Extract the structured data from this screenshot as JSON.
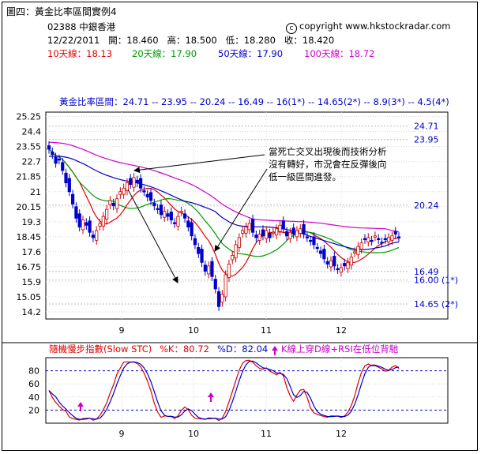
{
  "caption": "圖四：黃金比率區間實例4",
  "copyright": "copyright www.hkstockradar.com",
  "stock": {
    "code": "02388",
    "name": "中銀香港"
  },
  "quote": {
    "date": "12/22/2011",
    "open_label": "開：",
    "open": "18.460",
    "high_label": "高：",
    "high": "18.500",
    "low_label": "低：",
    "low": "18.280",
    "close_label": "收：",
    "close": "18.420"
  },
  "moving_averages": [
    {
      "label": "10天線：",
      "value": "18.13",
      "color": "#e00000"
    },
    {
      "label": "20天線：",
      "value": "17.90",
      "color": "#009900"
    },
    {
      "label": "50天線：",
      "value": "17.90",
      "color": "#0000cc"
    },
    {
      "label": "100天線：",
      "value": "18.72",
      "color": "#cc00cc"
    }
  ],
  "chart_data": [
    {
      "type": "candlestick",
      "title": "黃金比率區間：24.71 -- 23.95 -- 20.24 -- 16.49 -- 16(1*) -- 14.65(2*) -- 8.9(3*) -- 4.5(4*)",
      "ylim": [
        13.8,
        25.5
      ],
      "yticks": [
        "25.25",
        "24.4",
        "23.55",
        "22.7",
        "21.85",
        "21",
        "20.15",
        "19.3",
        "18.45",
        "17.6",
        "16.75",
        "15.9",
        "15.05",
        "14.2"
      ],
      "x_month_labels": [
        "9",
        "10",
        "11",
        "12"
      ],
      "golden_levels": [
        {
          "value": 24.71,
          "label": "24.71"
        },
        {
          "value": 23.95,
          "label": "23.95"
        },
        {
          "value": 20.24,
          "label": "20.24"
        },
        {
          "value": 16.49,
          "label": "16.49"
        },
        {
          "value": 16.0,
          "label": "16.00 (1*)"
        },
        {
          "value": 14.65,
          "label": "14.65 (2*)"
        }
      ],
      "annotation": [
        "當死亡交叉出現後而技術分析",
        "沒有轉好，市況會在反彈後向",
        "低一級區間進發。"
      ],
      "closes": [
        23.4,
        23.1,
        22.6,
        22.8,
        22.2,
        21.5,
        21.0,
        20.3,
        19.5,
        19.0,
        19.4,
        19.1,
        18.7,
        18.4,
        18.8,
        19.2,
        19.6,
        20.0,
        20.5,
        20.2,
        20.6,
        21.0,
        21.2,
        21.5,
        21.4,
        21.8,
        21.5,
        21.2,
        21.0,
        20.7,
        20.5,
        20.2,
        20.0,
        19.7,
        19.9,
        19.6,
        19.4,
        19.2,
        19.6,
        19.9,
        19.5,
        19.0,
        18.5,
        18.0,
        17.5,
        17.0,
        16.5,
        16.8,
        16.2,
        15.5,
        14.5,
        15.2,
        16.3,
        16.9,
        17.4,
        18.0,
        18.4,
        18.8,
        19.0,
        19.2,
        18.7,
        18.4,
        18.6,
        18.5,
        18.8,
        18.4,
        18.7,
        18.9,
        19.1,
        18.9,
        18.5,
        18.7,
        18.6,
        18.8,
        18.9,
        18.6,
        18.4,
        18.2,
        18.0,
        17.8,
        17.5,
        17.2,
        16.9,
        17.1,
        16.8,
        16.6,
        16.7,
        16.8,
        17.0,
        17.3,
        17.6,
        17.9,
        18.1,
        18.3,
        18.4,
        18.2,
        18.5,
        18.3,
        18.1,
        18.3,
        18.4,
        18.5,
        18.6,
        18.42
      ]
    },
    {
      "type": "line",
      "title": "隨機慢步指數(Slow STC)",
      "k_label": "%K：80.72",
      "d_label": "%D：82.04",
      "note": "K線上穿D線+RSI在低位背馳",
      "ylim": [
        0,
        100
      ],
      "yticks": [
        "80",
        "60",
        "40",
        "20"
      ],
      "x_month_labels": [
        "9",
        "10",
        "11",
        "12"
      ]
    }
  ]
}
